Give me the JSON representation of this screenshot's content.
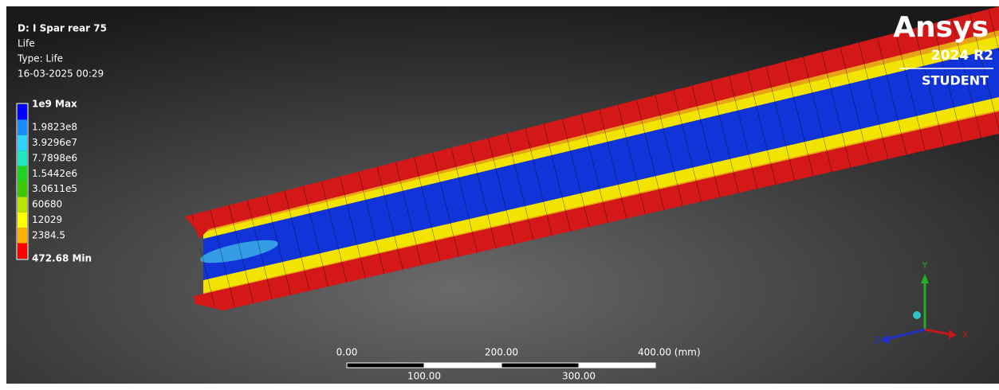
{
  "header": {
    "title": "D: I Spar rear 75",
    "result": "Life",
    "type": "Type: Life",
    "timestamp": "16-03-2025 00:29"
  },
  "legend": {
    "labels": [
      "1e9 Max",
      "1.9823e8",
      "3.9296e7",
      "7.7898e6",
      "1.5442e6",
      "3.0611e5",
      "60680",
      "12029",
      "2384.5",
      "472.68 Min"
    ]
  },
  "logo": {
    "brand": "Ansys",
    "version": "2024 R2",
    "edition": "STUDENT"
  },
  "scale_bar": {
    "top_labels": [
      "0.00",
      "200.00",
      "400.00 (mm)"
    ],
    "bottom_labels": [
      "100.00",
      "300.00"
    ]
  },
  "triad": {
    "y": "Y",
    "z": "Z",
    "x": "X"
  }
}
